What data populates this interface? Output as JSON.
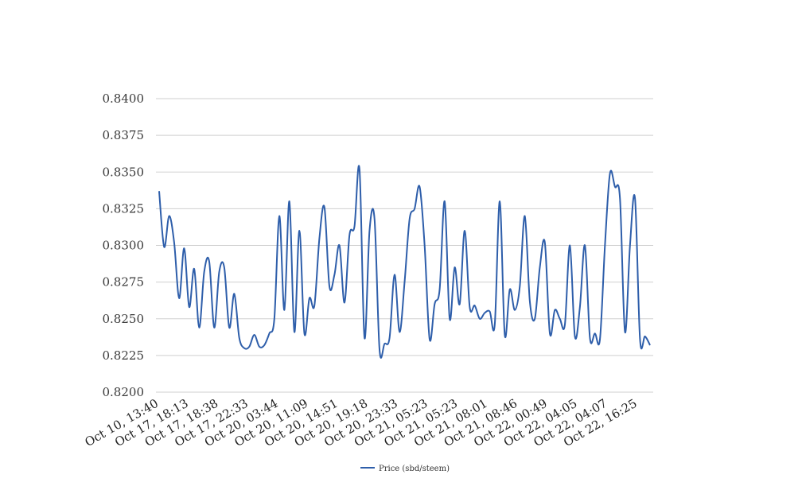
{
  "chart_data": {
    "type": "line",
    "title": "",
    "xlabel": "",
    "ylabel": "",
    "ylim": [
      0.82,
      0.84
    ],
    "y_ticks": [
      "0.8200",
      "0.8225",
      "0.8250",
      "0.8275",
      "0.8300",
      "0.8325",
      "0.8350",
      "0.8375",
      "0.8400"
    ],
    "grid": "horizontal",
    "legend_position": "bottom",
    "x_tick_labels": [
      "Oct 10, 13:40",
      "Oct 17, 18:13",
      "Oct 17, 18:38",
      "Oct 17, 22:33",
      "Oct 20, 03:44",
      "Oct 20, 11:09",
      "Oct 20, 14:51",
      "Oct 20, 19:18",
      "Oct 20, 23:33",
      "Oct 21, 05:23",
      "Oct 21, 05:23",
      "Oct 21, 08:01",
      "Oct 21, 08:46",
      "Oct 22, 00:49",
      "Oct 22, 04:05",
      "Oct 22, 04:07",
      "Oct 22, 16:25"
    ],
    "series": [
      {
        "name": "Price (sbd/steem)",
        "color": "#2e5eaa",
        "values": [
          0.8337,
          0.8299,
          0.832,
          0.8302,
          0.8264,
          0.8298,
          0.8258,
          0.8284,
          0.8244,
          0.8282,
          0.8289,
          0.8244,
          0.8282,
          0.8285,
          0.8244,
          0.8267,
          0.8237,
          0.823,
          0.8231,
          0.8239,
          0.8231,
          0.8232,
          0.824,
          0.825,
          0.832,
          0.8256,
          0.833,
          0.8241,
          0.831,
          0.824,
          0.8264,
          0.8259,
          0.8305,
          0.8326,
          0.8272,
          0.828,
          0.83,
          0.8261,
          0.8307,
          0.8313,
          0.8352,
          0.8237,
          0.831,
          0.8318,
          0.8229,
          0.8233,
          0.8237,
          0.828,
          0.8241,
          0.8275,
          0.8318,
          0.8325,
          0.834,
          0.83,
          0.8236,
          0.826,
          0.827,
          0.833,
          0.825,
          0.8285,
          0.826,
          0.831,
          0.8258,
          0.8259,
          0.825,
          0.8254,
          0.8255,
          0.8246,
          0.833,
          0.8239,
          0.827,
          0.8256,
          0.8272,
          0.832,
          0.8262,
          0.825,
          0.8285,
          0.8302,
          0.824,
          0.8256,
          0.825,
          0.8246,
          0.83,
          0.8238,
          0.8258,
          0.83,
          0.8237,
          0.824,
          0.8236,
          0.83,
          0.8349,
          0.834,
          0.8332,
          0.8241,
          0.83,
          0.8332,
          0.8236,
          0.8238,
          0.8232
        ]
      }
    ]
  }
}
